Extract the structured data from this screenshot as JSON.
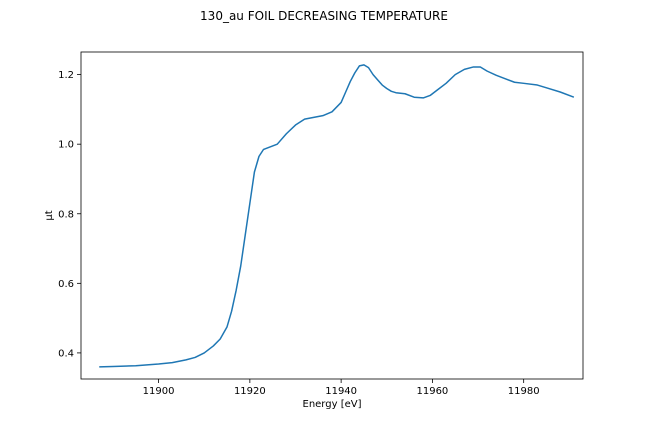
{
  "chart_data": {
    "type": "line",
    "title": "130_au FOIL DECREASING TEMPERATURE",
    "xlabel": "Energy [eV]",
    "ylabel": "μt",
    "xlim": [
      11883,
      11993
    ],
    "ylim": [
      0.325,
      1.265
    ],
    "xticks": [
      11900,
      11920,
      11940,
      11960,
      11980
    ],
    "yticks": [
      0.4,
      0.6,
      0.8,
      1.0,
      1.2
    ],
    "xtick_labels": [
      "11900",
      "11920",
      "11940",
      "11960",
      "11980"
    ],
    "ytick_labels": [
      "0.4",
      "0.6",
      "0.8",
      "1.0",
      "1.2"
    ],
    "grid": false,
    "series": [
      {
        "color": "#1f77b4",
        "x": [
          11887,
          11890,
          11895,
          11900,
          11903,
          11906,
          11908,
          11910,
          11912,
          11913.5,
          11915,
          11916,
          11917,
          11918,
          11919,
          11920,
          11921,
          11922,
          11923,
          11924,
          11925,
          11926,
          11928,
          11930,
          11932,
          11934,
          11936,
          11938,
          11940,
          11941,
          11942,
          11943,
          11944,
          11945,
          11946,
          11947,
          11948,
          11949,
          11950,
          11951,
          11952,
          11954,
          11956,
          11958,
          11959.5,
          11961,
          11963,
          11965,
          11967,
          11969,
          11970.5,
          11972,
          11974,
          11976,
          11978,
          11980,
          11983,
          11985,
          11988,
          11991
        ],
        "y": [
          0.36,
          0.361,
          0.363,
          0.368,
          0.372,
          0.38,
          0.387,
          0.4,
          0.42,
          0.44,
          0.475,
          0.52,
          0.58,
          0.65,
          0.74,
          0.83,
          0.92,
          0.965,
          0.985,
          0.99,
          0.995,
          1.0,
          1.03,
          1.055,
          1.072,
          1.077,
          1.082,
          1.093,
          1.12,
          1.15,
          1.18,
          1.205,
          1.225,
          1.228,
          1.22,
          1.2,
          1.185,
          1.17,
          1.16,
          1.152,
          1.148,
          1.145,
          1.135,
          1.133,
          1.14,
          1.155,
          1.175,
          1.2,
          1.215,
          1.222,
          1.222,
          1.21,
          1.198,
          1.188,
          1.178,
          1.175,
          1.17,
          1.162,
          1.15,
          1.135
        ]
      }
    ]
  }
}
